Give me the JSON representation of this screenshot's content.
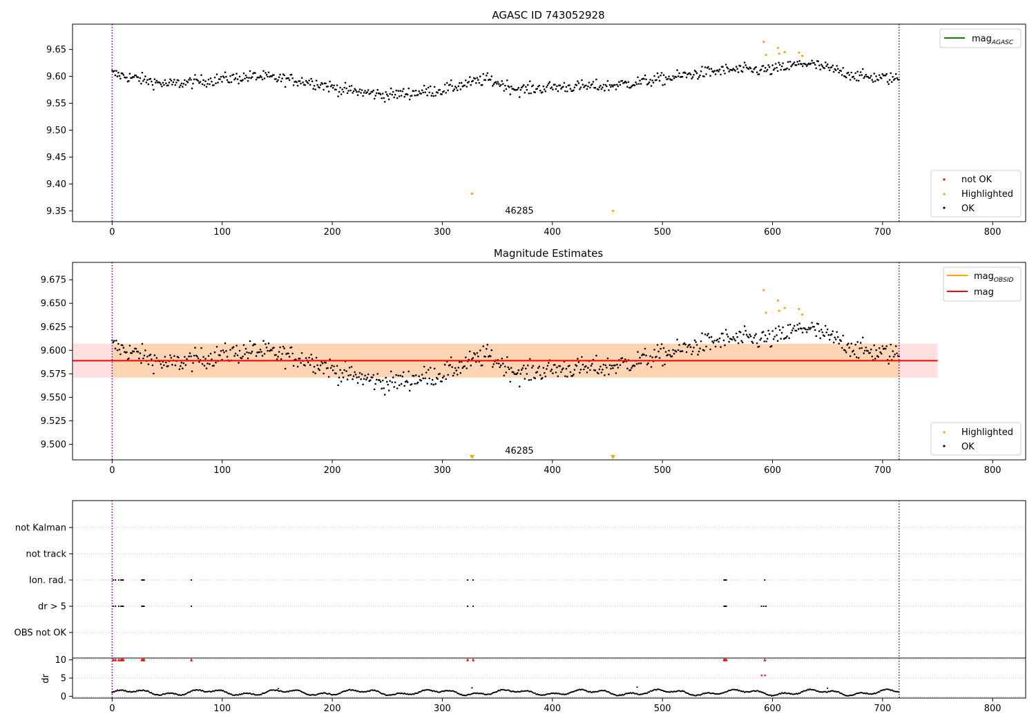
{
  "chart_data": [
    {
      "type": "scatter",
      "title": "AGASC ID 743052928",
      "xlim": [
        -36,
        830
      ],
      "ylim": [
        9.33,
        9.697
      ],
      "x_ticks": [
        0,
        100,
        200,
        300,
        400,
        500,
        600,
        700,
        800
      ],
      "y_ticks": [
        9.35,
        9.4,
        9.45,
        9.5,
        9.55,
        9.6,
        9.65
      ],
      "y_tick_labels": [
        "9.35",
        "9.40",
        "9.45",
        "9.50",
        "9.55",
        "9.60",
        "9.65"
      ],
      "vlines": [
        0,
        715
      ],
      "obsid_label": {
        "text": "46285",
        "x": 357,
        "y": 9.333
      },
      "line_legend": {
        "label": "mag",
        "sub": "AGASC",
        "color": "#008000"
      },
      "marker_legend": [
        {
          "label": "not OK",
          "color": "#ff0000"
        },
        {
          "label": "Highlighted",
          "color": "#ffa500"
        },
        {
          "label": "OK",
          "color": "#000000"
        }
      ],
      "ok_profile": [
        {
          "x": 0,
          "y": 9.605
        },
        {
          "x": 50,
          "y": 9.585
        },
        {
          "x": 100,
          "y": 9.595
        },
        {
          "x": 130,
          "y": 9.6
        },
        {
          "x": 180,
          "y": 9.59
        },
        {
          "x": 210,
          "y": 9.575
        },
        {
          "x": 250,
          "y": 9.565
        },
        {
          "x": 300,
          "y": 9.575
        },
        {
          "x": 340,
          "y": 9.595
        },
        {
          "x": 370,
          "y": 9.575
        },
        {
          "x": 400,
          "y": 9.58
        },
        {
          "x": 450,
          "y": 9.582
        },
        {
          "x": 500,
          "y": 9.595
        },
        {
          "x": 530,
          "y": 9.605
        },
        {
          "x": 560,
          "y": 9.612
        },
        {
          "x": 600,
          "y": 9.612
        },
        {
          "x": 630,
          "y": 9.625
        },
        {
          "x": 680,
          "y": 9.6
        },
        {
          "x": 715,
          "y": 9.595
        }
      ],
      "highlighted": [
        {
          "x": 327,
          "y": 9.382
        },
        {
          "x": 455,
          "y": 9.35
        },
        {
          "x": 592,
          "y": 9.664
        },
        {
          "x": 594,
          "y": 9.64
        },
        {
          "x": 605,
          "y": 9.653
        },
        {
          "x": 606,
          "y": 9.642
        },
        {
          "x": 611,
          "y": 9.645
        },
        {
          "x": 624,
          "y": 9.644
        },
        {
          "x": 627,
          "y": 9.638
        }
      ]
    },
    {
      "type": "scatter",
      "title": "Magnitude Estimates",
      "xlim": [
        -36,
        830
      ],
      "ylim": [
        9.4835,
        9.6935
      ],
      "x_ticks": [
        0,
        100,
        200,
        300,
        400,
        500,
        600,
        700,
        800
      ],
      "y_ticks": [
        9.5,
        9.525,
        9.55,
        9.575,
        9.6,
        9.625,
        9.65,
        9.675
      ],
      "y_tick_labels": [
        "9.500",
        "9.525",
        "9.550",
        "9.575",
        "9.600",
        "9.625",
        "9.650",
        "9.675"
      ],
      "vlines": [
        0,
        715
      ],
      "obsid_label": {
        "text": "46285",
        "x": 357,
        "y": 9.487
      },
      "mag_line": {
        "value": 9.589,
        "x_range": [
          -36,
          750
        ],
        "color": "#ff0000"
      },
      "mag_band": {
        "low": 9.571,
        "high": 9.607,
        "x_range": [
          -36,
          750
        ]
      },
      "obsid_band": {
        "low": 9.571,
        "high": 9.607,
        "x_range": [
          0,
          715
        ]
      },
      "obsid_line": {
        "value": 9.589,
        "color": "#ffa500"
      },
      "line_legend": [
        {
          "label": "mag",
          "sub": "OBSID",
          "color": "#ffa500"
        },
        {
          "label": "mag",
          "sub": "",
          "color": "#ff0000"
        }
      ],
      "marker_legend": [
        {
          "label": "Highlighted",
          "color": "#ffa500"
        },
        {
          "label": "OK",
          "color": "#000000"
        }
      ],
      "highlighted": [
        {
          "x": 592,
          "y": 9.664
        },
        {
          "x": 594,
          "y": 9.64
        },
        {
          "x": 605,
          "y": 9.653
        },
        {
          "x": 606,
          "y": 9.642
        },
        {
          "x": 611,
          "y": 9.645
        },
        {
          "x": 624,
          "y": 9.644
        },
        {
          "x": 627,
          "y": 9.638
        }
      ],
      "offscale_markers": [
        {
          "x": 327
        },
        {
          "x": 455
        }
      ]
    },
    {
      "type": "scatter",
      "xlim": [
        -36,
        830
      ],
      "x_ticks": [
        0,
        100,
        200,
        300,
        400,
        500,
        600,
        700,
        800
      ],
      "vlines": [
        0,
        715
      ],
      "flag_rows": [
        "not Kalman",
        "not track",
        "Ion. rad.",
        "dr > 5",
        "OBS not OK"
      ],
      "flag_points": {
        "Ion. rad.": [
          1,
          3,
          6,
          8,
          9,
          10,
          27,
          28,
          29,
          72,
          323,
          328,
          556,
          557,
          558,
          593
        ],
        "dr > 5": [
          1,
          3,
          6,
          8,
          9,
          10,
          27,
          28,
          29,
          72,
          323,
          328,
          556,
          557,
          558,
          590,
          592,
          594
        ]
      },
      "dr_axis": {
        "ylabel": "dr",
        "ylim": [
          -0.5,
          10.5
        ],
        "y_ticks": [
          0,
          5,
          10
        ],
        "y_tick_labels": [
          "0",
          "5",
          "10"
        ],
        "capped": [
          1,
          3,
          6,
          8,
          9,
          10,
          27,
          28,
          29,
          72,
          323,
          328,
          556,
          557,
          558,
          593
        ],
        "high_points": [
          {
            "x": 590,
            "y": 5.7
          },
          {
            "x": 593,
            "y": 5.7
          }
        ],
        "spikes": [
          {
            "x": 327,
            "y": 2.3
          },
          {
            "x": 477,
            "y": 2.5
          },
          {
            "x": 151,
            "y": 2.1
          },
          {
            "x": 650,
            "y": 2.2
          }
        ]
      }
    }
  ]
}
